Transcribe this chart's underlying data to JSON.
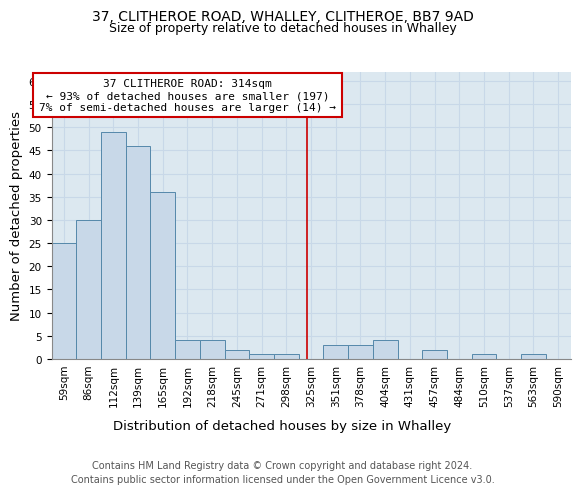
{
  "title_line1": "37, CLITHEROE ROAD, WHALLEY, CLITHEROE, BB7 9AD",
  "title_line2": "Size of property relative to detached houses in Whalley",
  "xlabel": "Distribution of detached houses by size in Whalley",
  "ylabel": "Number of detached properties",
  "bin_labels": [
    "59sqm",
    "86sqm",
    "112sqm",
    "139sqm",
    "165sqm",
    "192sqm",
    "218sqm",
    "245sqm",
    "271sqm",
    "298sqm",
    "325sqm",
    "351sqm",
    "378sqm",
    "404sqm",
    "431sqm",
    "457sqm",
    "484sqm",
    "510sqm",
    "537sqm",
    "563sqm",
    "590sqm"
  ],
  "bar_heights": [
    25,
    30,
    49,
    46,
    36,
    4,
    4,
    2,
    1,
    1,
    0,
    3,
    3,
    4,
    0,
    2,
    0,
    1,
    0,
    1,
    0
  ],
  "bar_color": "#c8d8e8",
  "bar_edge_color": "#5588aa",
  "vline_x_index": 9.85,
  "vline_color": "#cc0000",
  "annotation_text": "37 CLITHEROE ROAD: 314sqm\n← 93% of detached houses are smaller (197)\n7% of semi-detached houses are larger (14) →",
  "annotation_box_color": "#ffffff",
  "annotation_box_edge_color": "#cc0000",
  "ylim": [
    0,
    62
  ],
  "yticks": [
    0,
    5,
    10,
    15,
    20,
    25,
    30,
    35,
    40,
    45,
    50,
    55,
    60
  ],
  "grid_color": "#c8d8e8",
  "plot_bg_color": "#dce8f0",
  "footer_line1": "Contains HM Land Registry data © Crown copyright and database right 2024.",
  "footer_line2": "Contains public sector information licensed under the Open Government Licence v3.0.",
  "title_fontsize": 10,
  "subtitle_fontsize": 9,
  "axis_label_fontsize": 9.5,
  "tick_fontsize": 7.5,
  "annotation_fontsize": 8,
  "footer_fontsize": 7
}
